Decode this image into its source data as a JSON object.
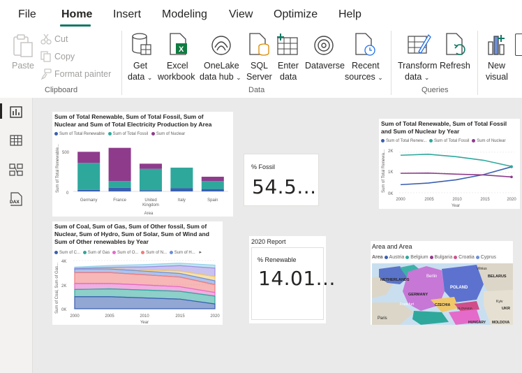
{
  "menu": {
    "tabs": [
      "File",
      "Home",
      "Insert",
      "Modeling",
      "View",
      "Optimize",
      "Help"
    ],
    "active": "Home"
  },
  "ribbon": {
    "paste": "Paste",
    "cut": "Cut",
    "copy": "Copy",
    "format_painter": "Format painter",
    "clipboard_group": "Clipboard",
    "get_data": [
      "Get",
      "data"
    ],
    "excel": [
      "Excel",
      "workbook"
    ],
    "onelake": [
      "OneLake",
      "data hub"
    ],
    "sql": [
      "SQL",
      "Server"
    ],
    "enter_data": [
      "Enter",
      "data"
    ],
    "dataverse": "Dataverse",
    "recent": [
      "Recent",
      "sources"
    ],
    "data_group": "Data",
    "transform": [
      "Transform",
      "data"
    ],
    "refresh": "Refresh",
    "queries_group": "Queries",
    "new_visual": [
      "New",
      "visual"
    ],
    "chevron": "⌄"
  },
  "rail": [
    "report-view-icon",
    "table-view-icon",
    "model-view-icon",
    "dax-query-icon"
  ],
  "rail_dax_label": "DAX",
  "visuals": {
    "bar": {
      "title": "Sum of Total Renewable, Sum of Total Fossil, Sum of Nuclear and Sum of Total Electricity Production by Area",
      "legend": [
        "Sum of Total Renewable",
        "Sum of Total Fossil",
        "Sum of Nuclear"
      ],
      "ylabel": "Sum of Total Renewable...",
      "xlabel": "Area",
      "yticks": [
        "500",
        "0"
      ]
    },
    "kpi_fossil": {
      "label": "% Fossil",
      "value": "54.5..."
    },
    "line": {
      "title": "Sum of Total Renewable, Sum of Total Fossil and Sum of Nuclear by Year",
      "legend": [
        "Sum of Total Renew...",
        "Sum of Total Fossil",
        "Sum of Nuclear"
      ],
      "ylabel": "Sum of Total Renewa...",
      "xlabel": "Year",
      "yticks": [
        "2K",
        "1K",
        "0K"
      ],
      "xticks": [
        "2000",
        "2005",
        "2010",
        "2015",
        "2020"
      ]
    },
    "area": {
      "title": "Sum of Coal, Sum of Gas, Sum of Other fossil, Sum of Nuclear, Sum of Hydro, Sum of Solar, Sum of Wind and Sum of Other renewables by Year",
      "legend": [
        "Sum of C...",
        "Sum of Gas",
        "Sum of O...",
        "Sum of N...",
        "Sum of H...",
        "Sum of H..."
      ],
      "ylabel": "Sum of Coal, Sum of Gas...",
      "xlabel": "Year",
      "yticks": [
        "4K",
        "2K",
        "0K"
      ],
      "xticks": [
        "2000",
        "2005",
        "2010",
        "2015",
        "2020"
      ],
      "more": "▸"
    },
    "report_2020": {
      "heading": "2020 Report",
      "label": "% Renewable",
      "value": "14.01..."
    },
    "map": {
      "title": "Area and Area",
      "legend_title": "Area",
      "legend": [
        "Austria",
        "Belgium",
        "Bulgaria",
        "Croatia",
        "Cyprus"
      ],
      "labels": [
        "NETHERLANDS",
        "Berlin",
        "POLAND",
        "BELARUS",
        "GERMANY",
        "CZECHIA",
        "SLOVAKIA",
        "UKR",
        "HUNGARY",
        "MOLDOVA",
        "Paris",
        "Kyiv",
        "Vilnius",
        "Frankfurt"
      ]
    }
  },
  "chart_data": [
    {
      "type": "bar",
      "title": "Sum of Total Renewable, Sum of Total Fossil, Sum of Nuclear and Sum of Total Electricity Production by Area",
      "categories": [
        "Germany",
        "France",
        "United Kingdom",
        "Italy",
        "Spain"
      ],
      "series": [
        {
          "name": "Sum of Total Renewable",
          "values": [
            20,
            45,
            15,
            40,
            30
          ]
        },
        {
          "name": "Sum of Total Fossil",
          "values": [
            340,
            85,
            270,
            260,
            100
          ]
        },
        {
          "name": "Sum of Nuclear",
          "values": [
            140,
            420,
            65,
            0,
            55
          ]
        }
      ],
      "xlabel": "Area",
      "ylabel": "Sum of Total Renewable...",
      "ylim": [
        0,
        600
      ],
      "colors": [
        "#3a5fb0",
        "#2fa89c",
        "#8e3b8c"
      ]
    },
    {
      "type": "line",
      "title": "Sum of Total Renewable, Sum of Total Fossil and Sum of Nuclear by Year",
      "x": [
        2000,
        2005,
        2010,
        2015,
        2020
      ],
      "series": [
        {
          "name": "Sum of Total Renewable",
          "values": [
            400,
            480,
            640,
            900,
            1280
          ]
        },
        {
          "name": "Sum of Total Fossil",
          "values": [
            1850,
            1900,
            1780,
            1600,
            1300
          ]
        },
        {
          "name": "Sum of Nuclear",
          "values": [
            960,
            970,
            920,
            880,
            780
          ]
        }
      ],
      "xlabel": "Year",
      "ylabel": "Sum of Total Renewa...",
      "ylim": [
        0,
        2100
      ],
      "colors": [
        "#3a5fb0",
        "#2fa89c",
        "#8e3b8c"
      ]
    },
    {
      "type": "area",
      "title": "Sum of Coal, Sum of Gas, Sum of Other fossil, Sum of Nuclear, Sum of Hydro, Sum of Solar, Sum of Wind and Sum of Other renewables by Year",
      "x": [
        2000,
        2005,
        2010,
        2015,
        2020
      ],
      "series": [
        {
          "name": "Sum of Coal",
          "values": [
            1000,
            1000,
            900,
            800,
            400
          ]
        },
        {
          "name": "Sum of Gas",
          "values": [
            600,
            650,
            650,
            650,
            650
          ]
        },
        {
          "name": "Sum of Other fossil",
          "values": [
            500,
            450,
            420,
            380,
            300
          ]
        },
        {
          "name": "Sum of Nuclear",
          "values": [
            900,
            900,
            850,
            800,
            650
          ]
        },
        {
          "name": "Sum of Hydro",
          "values": [
            300,
            300,
            300,
            300,
            320
          ]
        },
        {
          "name": "Sum of Solar",
          "values": [
            0,
            20,
            100,
            200,
            350
          ]
        },
        {
          "name": "Sum of Wind",
          "values": [
            50,
            120,
            250,
            450,
            700
          ]
        },
        {
          "name": "Sum of Other renewables",
          "values": [
            100,
            150,
            200,
            200,
            250
          ]
        }
      ],
      "xlabel": "Year",
      "ylabel": "Sum of Coal, Sum of Gas...",
      "ylim": [
        0,
        4000
      ],
      "colors": [
        "#3a5fb0",
        "#2fa89c",
        "#e46bc9",
        "#f07c7c",
        "#6e8fd8",
        "#f0c86a",
        "#9f8fe0",
        "#8ed0e8"
      ]
    }
  ]
}
